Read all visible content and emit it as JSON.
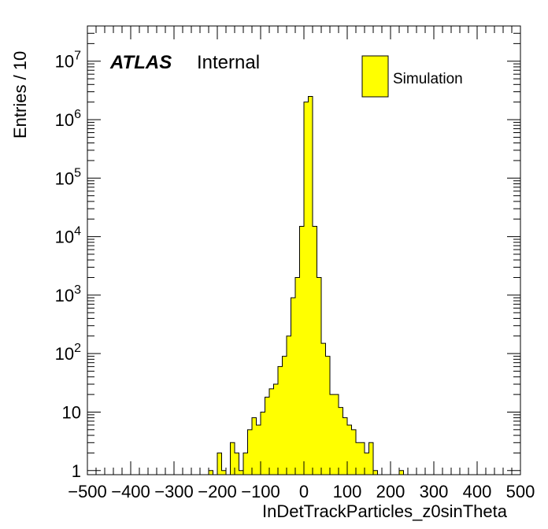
{
  "chart_data": {
    "type": "bar",
    "histogram": true,
    "title": "",
    "xlabel": "InDetTrackParticles_z0sinTheta",
    "ylabel": "Entries / 10",
    "xlim": [
      -500,
      500
    ],
    "ylim": [
      0.85,
      40000000
    ],
    "yscale": "log",
    "bin_width": 10,
    "grid": false,
    "legend": {
      "position": "top-right",
      "entries": [
        {
          "label": "Simulation",
          "color": "#ffff00"
        }
      ]
    },
    "annotations": {
      "experiment": "ATLAS",
      "status": "Internal"
    },
    "x_ticks": [
      "−500",
      "−400",
      "−300",
      "−200",
      "−100",
      "0",
      "100",
      "200",
      "300",
      "400",
      "500"
    ],
    "y_ticks": [
      "1",
      "10",
      "10^2",
      "10^3",
      "10^4",
      "10^5",
      "10^6",
      "10^7"
    ],
    "series": [
      {
        "name": "Simulation",
        "color": "#ffff00",
        "bins": [
          {
            "x0": -220,
            "x1": -210,
            "y": 1
          },
          {
            "x0": -200,
            "x1": -190,
            "y": 2
          },
          {
            "x0": -190,
            "x1": -180,
            "y": 1
          },
          {
            "x0": -170,
            "x1": -160,
            "y": 3
          },
          {
            "x0": -160,
            "x1": -150,
            "y": 2
          },
          {
            "x0": -150,
            "x1": -140,
            "y": 1
          },
          {
            "x0": -140,
            "x1": -130,
            "y": 2
          },
          {
            "x0": -130,
            "x1": -120,
            "y": 5
          },
          {
            "x0": -120,
            "x1": -110,
            "y": 8
          },
          {
            "x0": -110,
            "x1": -100,
            "y": 6
          },
          {
            "x0": -100,
            "x1": -90,
            "y": 10
          },
          {
            "x0": -90,
            "x1": -80,
            "y": 18
          },
          {
            "x0": -80,
            "x1": -70,
            "y": 25
          },
          {
            "x0": -70,
            "x1": -60,
            "y": 30
          },
          {
            "x0": -60,
            "x1": -50,
            "y": 60
          },
          {
            "x0": -50,
            "x1": -40,
            "y": 90
          },
          {
            "x0": -40,
            "x1": -30,
            "y": 200
          },
          {
            "x0": -30,
            "x1": -20,
            "y": 900
          },
          {
            "x0": -20,
            "x1": -10,
            "y": 2000
          },
          {
            "x0": -10,
            "x1": 0,
            "y": 15000
          },
          {
            "x0": 0,
            "x1": 10,
            "y": 2000000
          },
          {
            "x0": 10,
            "x1": 20,
            "y": 2500000
          },
          {
            "x0": 20,
            "x1": 30,
            "y": 15000
          },
          {
            "x0": 30,
            "x1": 40,
            "y": 2000
          },
          {
            "x0": 40,
            "x1": 50,
            "y": 150
          },
          {
            "x0": 50,
            "x1": 60,
            "y": 90
          },
          {
            "x0": 60,
            "x1": 70,
            "y": 20
          },
          {
            "x0": 70,
            "x1": 80,
            "y": 20
          },
          {
            "x0": 80,
            "x1": 90,
            "y": 12
          },
          {
            "x0": 90,
            "x1": 100,
            "y": 8
          },
          {
            "x0": 100,
            "x1": 110,
            "y": 6
          },
          {
            "x0": 110,
            "x1": 120,
            "y": 5
          },
          {
            "x0": 120,
            "x1": 130,
            "y": 3
          },
          {
            "x0": 130,
            "x1": 140,
            "y": 3
          },
          {
            "x0": 140,
            "x1": 150,
            "y": 2
          },
          {
            "x0": 150,
            "x1": 160,
            "y": 3
          },
          {
            "x0": 160,
            "x1": 170,
            "y": 1
          },
          {
            "x0": 220,
            "x1": 230,
            "y": 1
          }
        ]
      }
    ]
  }
}
